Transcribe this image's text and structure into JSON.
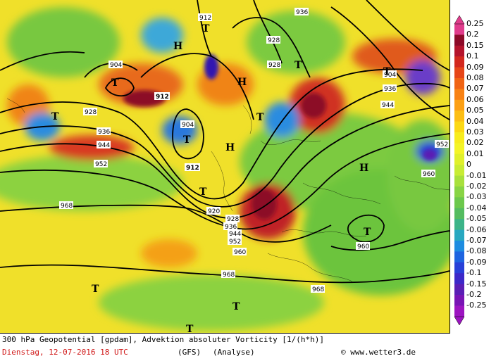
{
  "map": {
    "title": "300 hPa Geopotential [gpdam], Advektion absoluter Vorticity [1/(h*h)]",
    "date_line": "Dienstag, 12-07-2016  18 UTC",
    "model": "(GFS)",
    "analysis": "(Analyse)",
    "copyright": "© www.wetter3.de",
    "contour_labels": [
      "912",
      "904",
      "912",
      "936",
      "928",
      "928",
      "936",
      "904",
      "928",
      "936",
      "944",
      "912",
      "904",
      "912",
      "944",
      "952",
      "952",
      "960",
      "968",
      "920",
      "928",
      "936",
      "944",
      "952",
      "960",
      "968",
      "968",
      "960"
    ],
    "pressure_centers": [
      "H",
      "T",
      "T",
      "H",
      "T",
      "T",
      "T",
      "H",
      "T",
      "T",
      "H",
      "T",
      "T",
      "T",
      "T",
      "T"
    ],
    "colors": {
      "strong_positive": "#b01030",
      "positive": "#e8501e",
      "weak_positive": "#f5b800",
      "neutral": "#f2ea28",
      "weak_negative": "#6ec83c",
      "negative": "#28a0dc",
      "strong_negative": "#3018b0",
      "contour": "#000000",
      "footer_red": "#d01818"
    }
  },
  "legend": {
    "labels": [
      "0.25",
      "0.2",
      "0.15",
      "0.1",
      "0.09",
      "0.08",
      "0.07",
      "0.06",
      "0.05",
      "0.04",
      "0.03",
      "0.02",
      "0.01",
      "0",
      "-0.01",
      "-0.02",
      "-0.03",
      "-0.04",
      "-0.05",
      "-0.06",
      "-0.07",
      "-0.08",
      "-0.09",
      "-0.1",
      "-0.15",
      "-0.2",
      "-0.25"
    ],
    "colors": [
      "#e03c8c",
      "#8c0a28",
      "#b4142c",
      "#d2281e",
      "#e64618",
      "#f06414",
      "#f88214",
      "#fca014",
      "#fcbe14",
      "#fcd814",
      "#f8ec1e",
      "#f4f428",
      "#e0f02c",
      "#c8ec34",
      "#a8e03c",
      "#88d444",
      "#6cc84c",
      "#54bc60",
      "#3cb488",
      "#28a8c0",
      "#1e8ce0",
      "#1e64e0",
      "#2840d8",
      "#3c28c8",
      "#5a1eb4",
      "#7814b4",
      "#9c14c0"
    ]
  }
}
